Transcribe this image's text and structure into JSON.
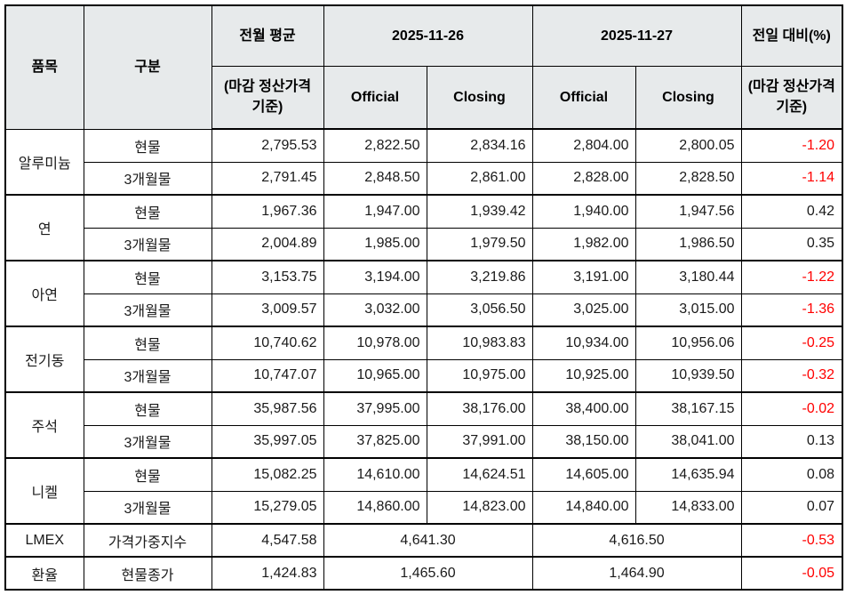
{
  "table": {
    "header": {
      "item": "품목",
      "category": "구분",
      "prev_avg": "전월 평균",
      "prev_avg_note": "(마감 정산가격 기준)",
      "date1": "2025-11-26",
      "date2": "2025-11-27",
      "official": "Official",
      "closing": "Closing",
      "change": "전일 대비(%)",
      "change_note": "(마감 정산가격 기준)"
    },
    "colors": {
      "header_bg": "#e7eaeb",
      "negative_text": "#ff0000",
      "border": "#000000"
    },
    "groups": [
      {
        "item": "알루미늄",
        "rows": [
          {
            "category": "현물",
            "prev_avg": "2,795.53",
            "official_1126": "2,822.50",
            "closing_1126": "2,834.16",
            "official_1127": "2,804.00",
            "closing_1127": "2,800.05",
            "change": "-1.20"
          },
          {
            "category": "3개월물",
            "prev_avg": "2,791.45",
            "official_1126": "2,848.50",
            "closing_1126": "2,861.00",
            "official_1127": "2,828.00",
            "closing_1127": "2,828.50",
            "change": "-1.14"
          }
        ]
      },
      {
        "item": "연",
        "rows": [
          {
            "category": "현물",
            "prev_avg": "1,967.36",
            "official_1126": "1,947.00",
            "closing_1126": "1,939.42",
            "official_1127": "1,940.00",
            "closing_1127": "1,947.56",
            "change": "0.42"
          },
          {
            "category": "3개월물",
            "prev_avg": "2,004.89",
            "official_1126": "1,985.00",
            "closing_1126": "1,979.50",
            "official_1127": "1,982.00",
            "closing_1127": "1,986.50",
            "change": "0.35"
          }
        ]
      },
      {
        "item": "아연",
        "rows": [
          {
            "category": "현물",
            "prev_avg": "3,153.75",
            "official_1126": "3,194.00",
            "closing_1126": "3,219.86",
            "official_1127": "3,191.00",
            "closing_1127": "3,180.44",
            "change": "-1.22"
          },
          {
            "category": "3개월물",
            "prev_avg": "3,009.57",
            "official_1126": "3,032.00",
            "closing_1126": "3,056.50",
            "official_1127": "3,025.00",
            "closing_1127": "3,015.00",
            "change": "-1.36"
          }
        ]
      },
      {
        "item": "전기동",
        "rows": [
          {
            "category": "현물",
            "prev_avg": "10,740.62",
            "official_1126": "10,978.00",
            "closing_1126": "10,983.83",
            "official_1127": "10,934.00",
            "closing_1127": "10,956.06",
            "change": "-0.25"
          },
          {
            "category": "3개월물",
            "prev_avg": "10,747.07",
            "official_1126": "10,965.00",
            "closing_1126": "10,975.00",
            "official_1127": "10,925.00",
            "closing_1127": "10,939.50",
            "change": "-0.32"
          }
        ]
      },
      {
        "item": "주석",
        "rows": [
          {
            "category": "현물",
            "prev_avg": "35,987.56",
            "official_1126": "37,995.00",
            "closing_1126": "38,176.00",
            "official_1127": "38,400.00",
            "closing_1127": "38,167.15",
            "change": "-0.02"
          },
          {
            "category": "3개월물",
            "prev_avg": "35,997.05",
            "official_1126": "37,825.00",
            "closing_1126": "37,991.00",
            "official_1127": "38,150.00",
            "closing_1127": "38,041.00",
            "change": "0.13"
          }
        ]
      },
      {
        "item": "니켈",
        "rows": [
          {
            "category": "현물",
            "prev_avg": "15,082.25",
            "official_1126": "14,610.00",
            "closing_1126": "14,624.51",
            "official_1127": "14,605.00",
            "closing_1127": "14,635.94",
            "change": "0.08"
          },
          {
            "category": "3개월물",
            "prev_avg": "15,279.05",
            "official_1126": "14,860.00",
            "closing_1126": "14,823.00",
            "official_1127": "14,840.00",
            "closing_1127": "14,833.00",
            "change": "0.07"
          }
        ]
      }
    ],
    "summary_rows": [
      {
        "item": "LMEX",
        "category": "가격가중지수",
        "prev_avg": "4,547.58",
        "value_1126": "4,641.30",
        "value_1127": "4,616.50",
        "change": "-0.53"
      },
      {
        "item": "환율",
        "category": "현물종가",
        "prev_avg": "1,424.83",
        "value_1126": "1,465.60",
        "value_1127": "1,464.90",
        "change": "-0.05"
      }
    ]
  }
}
